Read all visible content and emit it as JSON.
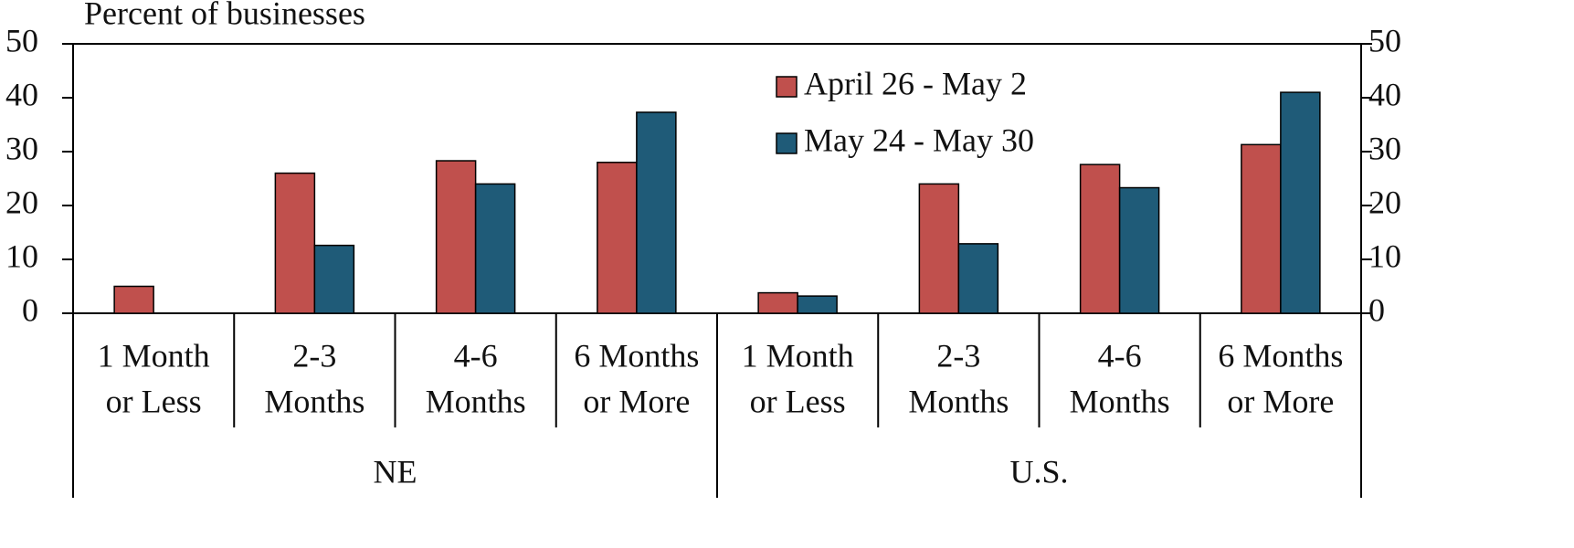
{
  "chart_data": {
    "type": "bar",
    "ylabel": "Percent of businesses",
    "categories": [
      [
        "1 Month",
        "or Less"
      ],
      [
        "2-3",
        "Months"
      ],
      [
        "4-6",
        "Months"
      ],
      [
        "6 Months",
        "or More"
      ],
      [
        "1 Month",
        "or Less"
      ],
      [
        "2-3",
        "Months"
      ],
      [
        "4-6",
        "Months"
      ],
      [
        "6 Months",
        "or More"
      ]
    ],
    "groups": [
      "NE",
      "U.S."
    ],
    "series": [
      {
        "name": "April 26 - May 2",
        "color": "#c0504d",
        "values": [
          5,
          26,
          28.3,
          28,
          3.8,
          24,
          27.6,
          31.3
        ]
      },
      {
        "name": "May 24 - May 30",
        "color": "#1f5b78",
        "values": [
          0,
          12.6,
          24,
          37.3,
          3.2,
          12.9,
          23.3,
          41
        ]
      }
    ],
    "ylim": [
      0,
      50
    ],
    "yticks": [
      0,
      10,
      20,
      30,
      40,
      50
    ],
    "y2lim": [
      0,
      50
    ],
    "y2ticks": [
      0,
      10,
      20,
      30,
      40,
      50
    ]
  }
}
